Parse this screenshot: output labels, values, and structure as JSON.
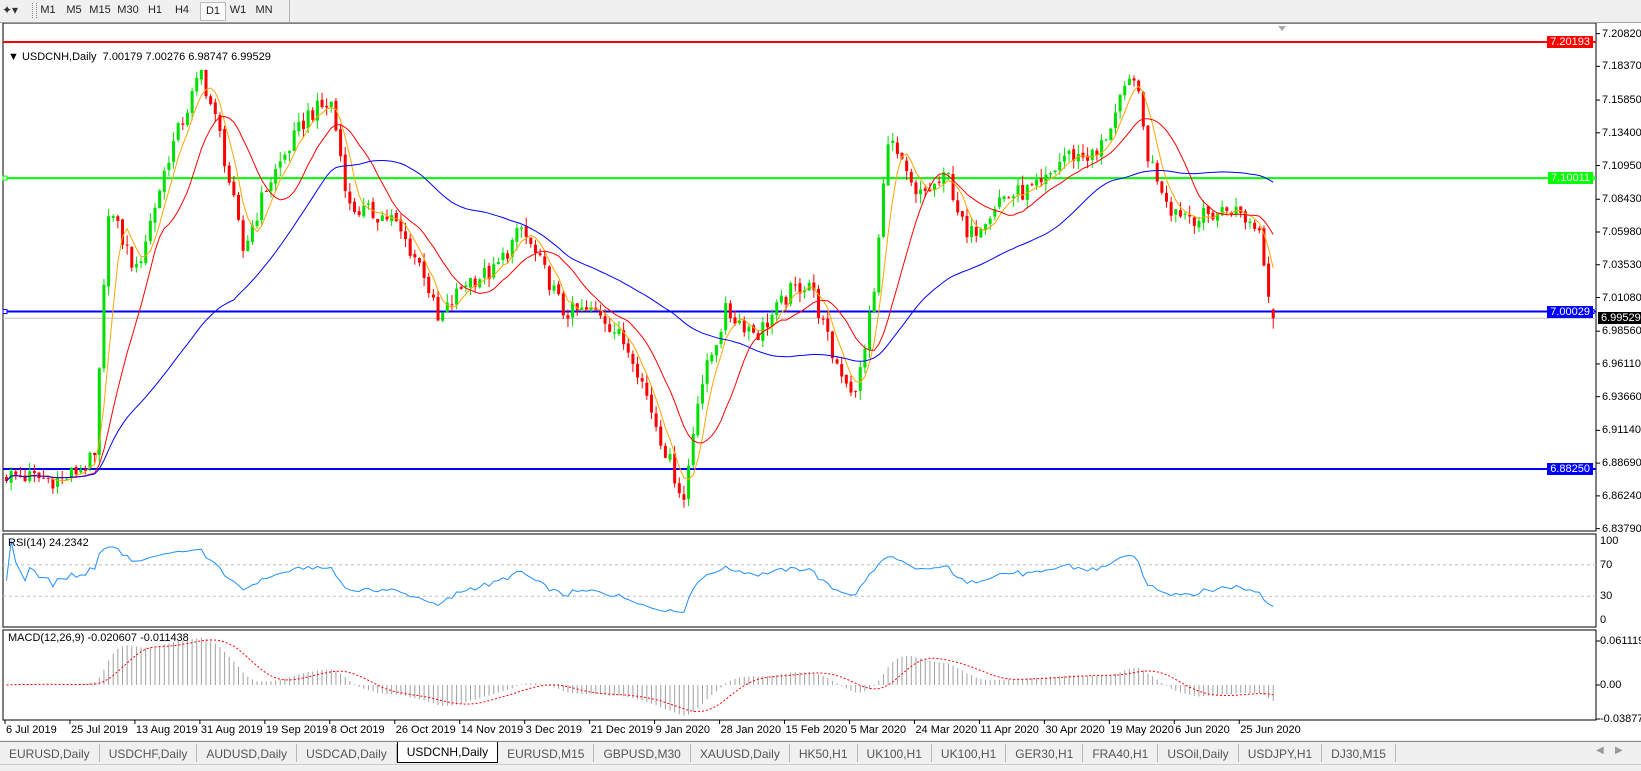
{
  "toolbar": {
    "timeframes": [
      "M1",
      "M5",
      "M15",
      "M30",
      "H1",
      "H4",
      "D1",
      "W1",
      "MN"
    ],
    "active_timeframe": "D1"
  },
  "chart": {
    "symbol_label": "USDCNH,Daily",
    "ohlc": "7.00179 7.00276 6.98747 6.99529",
    "current_price": "6.99529"
  },
  "price_axis": {
    "ticks": [
      "7.20820",
      "7.18370",
      "7.15850",
      "7.13400",
      "7.10950",
      "7.08430",
      "7.05980",
      "7.03530",
      "7.01080",
      "6.98560",
      "6.96110",
      "6.93660",
      "6.91140",
      "6.88690",
      "6.86240",
      "6.83790"
    ]
  },
  "levels": [
    {
      "label": "7.20193",
      "price": 7.20193,
      "color": "#ff0000",
      "text_color": "#ffffff"
    },
    {
      "label": "7.10011",
      "price": 7.10011,
      "color": "#00ff00",
      "text_color": "#ffffff"
    },
    {
      "label": "7.00029",
      "price": 7.00029,
      "color": "#0000ff",
      "text_color": "#ffffff"
    },
    {
      "label": "6.88250",
      "price": 6.8825,
      "color": "#0000ff",
      "text_color": "#ffffff"
    }
  ],
  "rsi": {
    "label": "RSI(14) 24.2342",
    "ticks": [
      "100",
      "70",
      "30",
      "0"
    ],
    "levels": [
      70,
      30
    ],
    "color": "#1e90ff"
  },
  "macd": {
    "label": "MACD(12,26,9) -0.020607 -0.011438",
    "ticks": [
      "0.061119",
      "0.00",
      "-0.038777"
    ],
    "histogram_color": "#a0a0a0",
    "signal_color": "#ff0000"
  },
  "date_axis": [
    "6 Jul 2019",
    "25 Jul 2019",
    "13 Aug 2019",
    "31 Aug 2019",
    "19 Sep 2019",
    "8 Oct 2019",
    "26 Oct 2019",
    "14 Nov 2019",
    "3 Dec 2019",
    "21 Dec 2019",
    "9 Jan 2020",
    "28 Jan 2020",
    "15 Feb 2020",
    "5 Mar 2020",
    "24 Mar 2020",
    "11 Apr 2020",
    "30 Apr 2020",
    "19 May 2020",
    "6 Jun 2020",
    "25 Jun 2020"
  ],
  "tabs": [
    "EURUSD,Daily",
    "USDCHF,Daily",
    "AUDUSD,Daily",
    "USDCAD,Daily",
    "USDCNH,Daily",
    "EURUSD,M15",
    "GBPUSD,M30",
    "XAUUSD,Daily",
    "HK50,H1",
    "UK100,H1",
    "UK100,H1",
    "GER30,H1",
    "FRA40,H1",
    "USOil,Daily",
    "USDJPY,H1",
    "DJ30,M15"
  ],
  "active_tab": "USDCNH,Daily",
  "chart_data": {
    "type": "candlestick",
    "symbol": "USDCNH",
    "timeframe": "Daily",
    "ylim": [
      6.8379,
      7.2082
    ],
    "bull_color": "#00e000",
    "bear_color": "#ff0000",
    "ma_colors": [
      "#ffa500",
      "#ff0000",
      "#0000ff"
    ],
    "approx_closes_by_bar": [
      [
        0,
        6.878
      ],
      [
        12,
        6.874
      ],
      [
        19,
        6.89
      ],
      [
        22,
        7.078
      ],
      [
        28,
        7.03
      ],
      [
        35,
        7.117
      ],
      [
        42,
        7.179
      ],
      [
        46,
        7.132
      ],
      [
        51,
        7.046
      ],
      [
        56,
        7.093
      ],
      [
        65,
        7.148
      ],
      [
        70,
        7.156
      ],
      [
        74,
        7.078
      ],
      [
        83,
        7.07
      ],
      [
        90,
        7.03
      ],
      [
        93,
        6.992
      ],
      [
        99,
        7.023
      ],
      [
        105,
        7.03
      ],
      [
        111,
        7.062
      ],
      [
        117,
        7.023
      ],
      [
        120,
        7.0
      ],
      [
        128,
        7.0
      ],
      [
        135,
        6.968
      ],
      [
        141,
        6.906
      ],
      [
        146,
        6.859
      ],
      [
        149,
        6.937
      ],
      [
        155,
        7.0
      ],
      [
        162,
        6.984
      ],
      [
        169,
        7.015
      ],
      [
        173,
        7.023
      ],
      [
        178,
        6.968
      ],
      [
        183,
        6.937
      ],
      [
        187,
        7.015
      ],
      [
        190,
        7.132
      ],
      [
        196,
        7.085
      ],
      [
        203,
        7.101
      ],
      [
        207,
        7.054
      ],
      [
        214,
        7.085
      ],
      [
        223,
        7.093
      ],
      [
        228,
        7.117
      ],
      [
        235,
        7.117
      ],
      [
        239,
        7.148
      ],
      [
        243,
        7.179
      ],
      [
        246,
        7.117
      ],
      [
        251,
        7.078
      ],
      [
        257,
        7.07
      ],
      [
        264,
        7.078
      ],
      [
        270,
        7.062
      ],
      [
        273,
        6.995
      ]
    ],
    "last_bar": {
      "open": 7.00179,
      "high": 7.00276,
      "low": 6.98747,
      "close": 6.99529
    }
  }
}
